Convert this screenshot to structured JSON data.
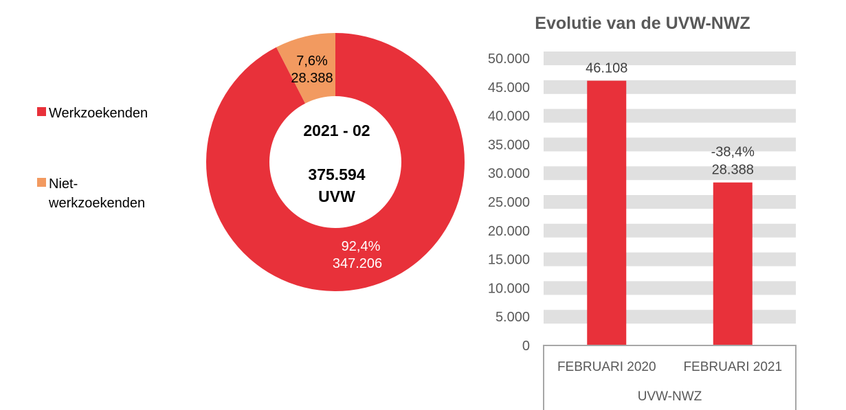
{
  "colors": {
    "werkzoekenden": "#E8313A",
    "niet_werkzoekenden": "#F29A60",
    "bar": "#E8313A",
    "band": "#E0E0E0",
    "axis_text": "#595959"
  },
  "chart_data": [
    {
      "type": "pie",
      "variant": "donut",
      "center_label": {
        "line1": "2021 - 02",
        "line2": "375.594",
        "line3": "UVW"
      },
      "legend": [
        "Werkzoekenden",
        "Niet-werkzoekenden"
      ],
      "legend_lines": [
        [
          "Werkzoekenden"
        ],
        [
          "Niet-",
          "werkzoekenden"
        ]
      ],
      "legend_placement": "left",
      "slices": [
        {
          "name": "Werkzoekenden",
          "value": 347206,
          "percent": 92.4,
          "label_pct": "92,4%",
          "label_val": "347.206"
        },
        {
          "name": "Niet-werkzoekenden",
          "value": 28388,
          "percent": 7.6,
          "label_pct": "7,6%",
          "label_val": "28.388"
        }
      ]
    },
    {
      "type": "bar",
      "title": "Evolutie van de UVW-NWZ",
      "categories": [
        "FEBRUARI 2020",
        "FEBRUARI 2021"
      ],
      "group_label": "UVW-NWZ",
      "values": [
        46108,
        28388
      ],
      "data_labels": [
        [
          "46.108"
        ],
        [
          "-38,4%",
          "28.388"
        ]
      ],
      "ylim": [
        0,
        50000
      ],
      "yticks": [
        0,
        5000,
        10000,
        15000,
        20000,
        25000,
        30000,
        35000,
        40000,
        45000,
        50000
      ],
      "ytick_labels": [
        "0",
        "5.000",
        "10.000",
        "15.000",
        "20.000",
        "25.000",
        "30.000",
        "35.000",
        "40.000",
        "45.000",
        "50.000"
      ],
      "grid": "banded"
    }
  ]
}
